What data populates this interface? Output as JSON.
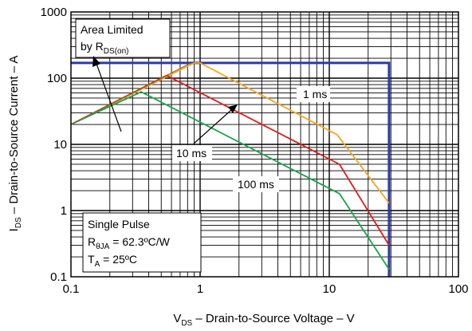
{
  "chart_data": {
    "type": "line",
    "xscale": "log",
    "yscale": "log",
    "xlim": [
      0.1,
      100
    ],
    "ylim": [
      0.1,
      1000
    ],
    "grid": true,
    "x_ticks": [
      "0.1",
      "1",
      "10",
      "100"
    ],
    "y_ticks": [
      "0.1",
      "1",
      "10",
      "100",
      "1000"
    ],
    "xlabel": {
      "main": "V",
      "sub": "DS",
      "rest": " – Drain-to-Source Voltage – V"
    },
    "ylabel": {
      "main": "I",
      "sub": "DS",
      "rest": " – Drain-to-Source Current – A"
    },
    "colors": {
      "limit": "#2b3aa8",
      "1ms": "#f5a623",
      "10ms": "#e01b1b",
      "100ms": "#1aa34a",
      "rdson": "#8a6a2a"
    },
    "series": [
      {
        "name": "1 ms",
        "points": [
          [
            0.1,
            20
          ],
          [
            0.9,
            170
          ],
          [
            1.0,
            170
          ],
          [
            11.5,
            14
          ],
          [
            29,
            1.3
          ]
        ]
      },
      {
        "name": "10 ms",
        "points": [
          [
            0.1,
            20
          ],
          [
            0.55,
            110
          ],
          [
            12,
            5
          ],
          [
            29,
            0.3
          ]
        ]
      },
      {
        "name": "100 ms",
        "points": [
          [
            0.1,
            20
          ],
          [
            0.35,
            62
          ],
          [
            12,
            1.8
          ],
          [
            29,
            0.13
          ]
        ]
      },
      {
        "name": "",
        "points": [
          [
            0.1,
            20
          ],
          [
            0.85,
            170
          ]
        ]
      }
    ],
    "limit_boundary": {
      "current_limit_A": 170,
      "voltage_limit_V": 29
    },
    "annotations": {
      "rdson_line1": "Area Limited",
      "rdson_line2_main": "by R",
      "rdson_line2_sub": "DS(on)",
      "label_1ms": "1 ms",
      "label_10ms": "10 ms",
      "label_100ms": "100 ms",
      "cond_line1": "Single Pulse",
      "cond_line2_main": "R",
      "cond_line2_sub": "θJA",
      "cond_line2_rest": " = 62.3ºC/W",
      "cond_line3_main": "T",
      "cond_line3_sub": "A",
      "cond_line3_rest": " = 25ºC"
    }
  }
}
